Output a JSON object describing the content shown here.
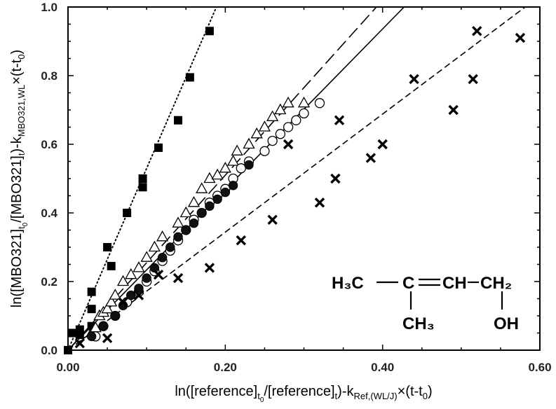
{
  "chart_data": {
    "type": "scatter",
    "xlim": [
      0,
      0.6
    ],
    "ylim": [
      0,
      1.0
    ],
    "x_ticks": [
      "0.00",
      "0.20",
      "0.40",
      "0.60"
    ],
    "y_ticks": [
      "0.0",
      "0.2",
      "0.4",
      "0.6",
      "0.8",
      "1.0"
    ],
    "xlabel": {
      "p1": "ln([reference]",
      "p1sub": "t",
      "p2sub2": "0",
      "p3": "/[reference]",
      "p3sub": "t",
      "p4": ")-k",
      "p4sub": "Ref,(WL/J)",
      "p5": "×(t-t",
      "p5sub": "0",
      "p6": ")"
    },
    "ylabel": {
      "p1": "ln([MBO321]",
      "p1sub": "t",
      "p2sub2": "0",
      "p3": "/[MBO321]",
      "p3sub": "t",
      "p4": ")-k",
      "p4sub": "MBO321,WL",
      "p5": "×(t-t",
      "p5sub": "0",
      "p6": ")"
    },
    "grid": false,
    "series": [
      {
        "marker": "filled-square",
        "points": [
          [
            0.0,
            0.0
          ],
          [
            0.005,
            0.05
          ],
          [
            0.015,
            0.06
          ],
          [
            0.03,
            0.07
          ],
          [
            0.03,
            0.12
          ],
          [
            0.03,
            0.17
          ],
          [
            0.015,
            0.045
          ],
          [
            0.05,
            0.3
          ],
          [
            0.055,
            0.245
          ],
          [
            0.075,
            0.4
          ],
          [
            0.095,
            0.475
          ],
          [
            0.095,
            0.5
          ],
          [
            0.115,
            0.59
          ],
          [
            0.14,
            0.67
          ],
          [
            0.155,
            0.795
          ],
          [
            0.18,
            0.93
          ]
        ]
      },
      {
        "marker": "open-triangle",
        "points": [
          [
            0.03,
            0.05
          ],
          [
            0.035,
            0.065
          ],
          [
            0.04,
            0.1
          ],
          [
            0.045,
            0.11
          ],
          [
            0.05,
            0.12
          ],
          [
            0.055,
            0.14
          ],
          [
            0.06,
            0.16
          ],
          [
            0.07,
            0.2
          ],
          [
            0.08,
            0.22
          ],
          [
            0.09,
            0.24
          ],
          [
            0.1,
            0.27
          ],
          [
            0.11,
            0.3
          ],
          [
            0.12,
            0.33
          ],
          [
            0.14,
            0.37
          ],
          [
            0.15,
            0.4
          ],
          [
            0.16,
            0.43
          ],
          [
            0.17,
            0.47
          ],
          [
            0.18,
            0.5
          ],
          [
            0.19,
            0.51
          ],
          [
            0.2,
            0.53
          ],
          [
            0.21,
            0.55
          ],
          [
            0.215,
            0.58
          ],
          [
            0.23,
            0.6
          ],
          [
            0.24,
            0.63
          ],
          [
            0.25,
            0.65
          ],
          [
            0.26,
            0.68
          ],
          [
            0.27,
            0.7
          ],
          [
            0.28,
            0.72
          ],
          [
            0.3,
            0.72
          ]
        ]
      },
      {
        "marker": "open-circle",
        "points": [
          [
            0.035,
            0.04
          ],
          [
            0.045,
            0.07
          ],
          [
            0.06,
            0.1
          ],
          [
            0.075,
            0.14
          ],
          [
            0.09,
            0.17
          ],
          [
            0.1,
            0.2
          ],
          [
            0.11,
            0.23
          ],
          [
            0.12,
            0.26
          ],
          [
            0.13,
            0.29
          ],
          [
            0.14,
            0.32
          ],
          [
            0.15,
            0.35
          ],
          [
            0.16,
            0.38
          ],
          [
            0.17,
            0.4
          ],
          [
            0.18,
            0.43
          ],
          [
            0.19,
            0.45
          ],
          [
            0.2,
            0.47
          ],
          [
            0.21,
            0.5
          ],
          [
            0.22,
            0.53
          ],
          [
            0.23,
            0.55
          ],
          [
            0.25,
            0.58
          ],
          [
            0.26,
            0.61
          ],
          [
            0.27,
            0.63
          ],
          [
            0.28,
            0.65
          ],
          [
            0.29,
            0.67
          ],
          [
            0.3,
            0.69
          ],
          [
            0.32,
            0.72
          ]
        ]
      },
      {
        "marker": "filled-circle",
        "points": [
          [
            0.03,
            0.04
          ],
          [
            0.045,
            0.07
          ],
          [
            0.06,
            0.1
          ],
          [
            0.07,
            0.13
          ],
          [
            0.08,
            0.16
          ],
          [
            0.09,
            0.18
          ],
          [
            0.1,
            0.21
          ],
          [
            0.11,
            0.24
          ],
          [
            0.12,
            0.27
          ],
          [
            0.13,
            0.3
          ],
          [
            0.14,
            0.33
          ],
          [
            0.15,
            0.35
          ],
          [
            0.16,
            0.37
          ],
          [
            0.17,
            0.4
          ],
          [
            0.18,
            0.42
          ],
          [
            0.19,
            0.44
          ],
          [
            0.2,
            0.46
          ],
          [
            0.21,
            0.48
          ],
          [
            0.23,
            0.54
          ]
        ]
      },
      {
        "marker": "cross",
        "points": [
          [
            0.015,
            0.02
          ],
          [
            0.05,
            0.035
          ],
          [
            0.07,
            0.14
          ],
          [
            0.09,
            0.16
          ],
          [
            0.115,
            0.22
          ],
          [
            0.14,
            0.21
          ],
          [
            0.18,
            0.24
          ],
          [
            0.22,
            0.32
          ],
          [
            0.26,
            0.38
          ],
          [
            0.28,
            0.6
          ],
          [
            0.32,
            0.43
          ],
          [
            0.34,
            0.5
          ],
          [
            0.345,
            0.67
          ],
          [
            0.385,
            0.56
          ],
          [
            0.4,
            0.6
          ],
          [
            0.44,
            0.79
          ],
          [
            0.49,
            0.7
          ],
          [
            0.515,
            0.79
          ],
          [
            0.52,
            0.93
          ],
          [
            0.575,
            0.91
          ]
        ]
      }
    ],
    "fit_lines": [
      {
        "style": "dotted",
        "slope": 5.3
      },
      {
        "style": "long-dash",
        "slope": 2.55
      },
      {
        "style": "solid",
        "slope": 2.34
      },
      {
        "style": "short-dash",
        "slope": 1.72
      }
    ]
  },
  "structure": {
    "h3c": "H₃C",
    "c": "C",
    "ch": "CH",
    "ch2": "CH₂",
    "ch3": "CH₃",
    "oh": "OH"
  }
}
